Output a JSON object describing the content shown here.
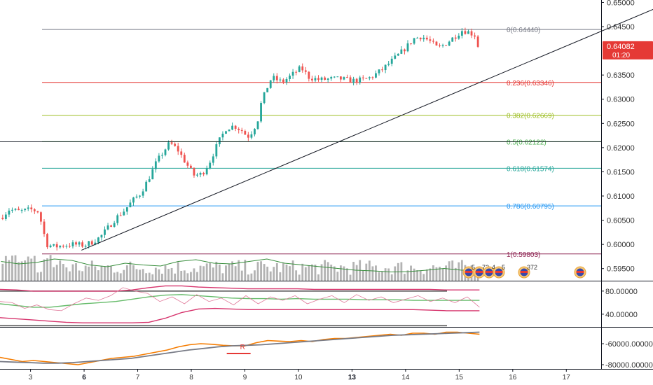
{
  "chart_data": {
    "type": "candlestick",
    "main": {
      "price_axis": {
        "ticks": [
          "0.65000",
          "0.64500",
          "0.63500",
          "0.63000",
          "0.62500",
          "0.62000",
          "0.61500",
          "0.61000",
          "0.60500",
          "0.60000",
          "0.59500"
        ],
        "tick_values": [
          0.65,
          0.645,
          0.635,
          0.63,
          0.625,
          0.62,
          0.615,
          0.61,
          0.605,
          0.6,
          0.595
        ],
        "ylim": [
          0.5925,
          0.6505
        ]
      },
      "current_price_label": "0.64082",
      "countdown_label": "01:20",
      "current_price": 0.64082,
      "crosshair_price": 0.6212,
      "fibonacci": [
        {
          "label": "0(0.64440)",
          "value": 0.6444,
          "color": "#787b86"
        },
        {
          "label": "0.236(0.63346)",
          "value": 0.63346,
          "color": "#e53935"
        },
        {
          "label": "0.382(0.62669)",
          "value": 0.62669,
          "color": "#9fbf26"
        },
        {
          "label": "0.5(0.62122)",
          "value": 0.62122,
          "color": "#4caf50"
        },
        {
          "label": "0.618(0.61574)",
          "value": 0.61574,
          "color": "#26a69a"
        },
        {
          "label": "0.786(0.60795)",
          "value": 0.60795,
          "color": "#2196f3"
        },
        {
          "label": "1(0.59803)",
          "value": 0.59803,
          "color": "#8e2452"
        }
      ],
      "trendline": {
        "from": {
          "t": 3.95,
          "price": 0.5988
        },
        "to": {
          "t": 15.4,
          "price": 0.6522
        }
      },
      "up_color": "#26a69a",
      "down_color": "#ef5350",
      "price_path": [
        [
          2.45,
          0.6055
        ],
        [
          2.6,
          0.6072
        ],
        [
          2.8,
          0.6068
        ],
        [
          3.0,
          0.6072
        ],
        [
          3.15,
          0.6068
        ],
        [
          3.3,
          0.6
        ],
        [
          3.45,
          0.5995
        ],
        [
          3.6,
          0.5998
        ],
        [
          3.8,
          0.6
        ],
        [
          4.0,
          0.5998
        ],
        [
          4.15,
          0.6005
        ],
        [
          4.3,
          0.6015
        ],
        [
          4.45,
          0.6035
        ],
        [
          4.6,
          0.6055
        ],
        [
          4.75,
          0.607
        ],
        [
          4.9,
          0.609
        ],
        [
          5.05,
          0.6105
        ],
        [
          5.2,
          0.6135
        ],
        [
          5.35,
          0.617
        ],
        [
          5.5,
          0.6195
        ],
        [
          5.6,
          0.621
        ],
        [
          5.75,
          0.6195
        ],
        [
          5.9,
          0.6168
        ],
        [
          6.05,
          0.6143
        ],
        [
          6.2,
          0.6145
        ],
        [
          6.35,
          0.6172
        ],
        [
          6.5,
          0.621
        ],
        [
          6.65,
          0.624
        ],
        [
          6.8,
          0.6245
        ],
        [
          6.95,
          0.6235
        ],
        [
          7.05,
          0.6222
        ],
        [
          7.15,
          0.6235
        ],
        [
          7.25,
          0.626
        ],
        [
          7.3,
          0.629
        ],
        [
          7.4,
          0.632
        ],
        [
          7.5,
          0.6345
        ],
        [
          7.7,
          0.6335
        ],
        [
          7.9,
          0.6352
        ],
        [
          8.05,
          0.6365
        ],
        [
          8.2,
          0.6345
        ],
        [
          8.4,
          0.634
        ],
        [
          8.6,
          0.6342
        ],
        [
          8.8,
          0.6342
        ],
        [
          9.0,
          0.6338
        ],
        [
          9.2,
          0.634
        ],
        [
          9.35,
          0.6345
        ],
        [
          9.55,
          0.636
        ],
        [
          9.75,
          0.638
        ],
        [
          9.9,
          0.6395
        ],
        [
          10.05,
          0.6412
        ],
        [
          10.15,
          0.6425
        ],
        [
          10.3,
          0.643
        ],
        [
          10.45,
          0.642
        ],
        [
          10.6,
          0.6405
        ],
        [
          10.75,
          0.6415
        ],
        [
          10.9,
          0.6428
        ],
        [
          11.05,
          0.6442
        ],
        [
          11.15,
          0.644
        ],
        [
          11.3,
          0.6432
        ],
        [
          11.38,
          0.6408
        ]
      ],
      "volume_ma": [
        0.55,
        0.48,
        0.52,
        0.62,
        0.58,
        0.45,
        0.4,
        0.5,
        0.45,
        0.42,
        0.55,
        0.6,
        0.5,
        0.48,
        0.55,
        0.62,
        0.5,
        0.45,
        0.4,
        0.35,
        0.3,
        0.28,
        0.25,
        0.26,
        0.3,
        0.35,
        0.3,
        0.32
      ],
      "event_badges": [
        "5",
        "72",
        "4",
        "5",
        "372"
      ]
    },
    "oscillator": {
      "ticks": [
        "80.00000",
        "40.00000"
      ],
      "tick_values": [
        80,
        40
      ],
      "ylim": [
        18,
        98
      ],
      "levels": [
        80,
        20
      ],
      "series": [
        {
          "color": "#d6336c",
          "values": [
            83,
            82,
            80,
            80,
            80,
            80,
            80,
            80,
            82,
            86,
            89,
            89,
            87,
            86,
            85,
            84,
            84,
            84,
            84,
            83,
            83,
            83,
            83,
            83,
            83,
            83,
            83,
            82,
            82,
            82
          ]
        },
        {
          "color": "#d6336c",
          "values": [
            34,
            32,
            30,
            28,
            26,
            25,
            25,
            25,
            25,
            26,
            33,
            43,
            49,
            50,
            49,
            48,
            48,
            48,
            48,
            48,
            48,
            48,
            48,
            48,
            48,
            48,
            47,
            46,
            46,
            46
          ]
        },
        {
          "color": "#66bb6a",
          "values": [
            58,
            55,
            52,
            52,
            55,
            58,
            60,
            62,
            66,
            70,
            73,
            74,
            72,
            70,
            68,
            67,
            67,
            66,
            67,
            66,
            66,
            66,
            65,
            65,
            65,
            64,
            64,
            64,
            64,
            64
          ]
        },
        {
          "color": "#e07a9a",
          "values": [
            62,
            60,
            50,
            56,
            48,
            46,
            58,
            68,
            64,
            72,
            86,
            80,
            76,
            62,
            70,
            58,
            74,
            62,
            68,
            56,
            72,
            58,
            70,
            64,
            72,
            58,
            66,
            72,
            60,
            74,
            64,
            70,
            60,
            66,
            72,
            62,
            68,
            60,
            70,
            52
          ]
        }
      ]
    },
    "accumulation": {
      "ticks": [
        "-60000.00000",
        "-80000.00000"
      ],
      "tick_values": [
        -60000,
        -80000
      ],
      "ylim": [
        -84000,
        -44000
      ],
      "series": [
        {
          "color": "#f57c00",
          "values": [
            -73000,
            -75000,
            -77000,
            -76000,
            -77000,
            -78000,
            -79000,
            -80000,
            -78000,
            -76000,
            -74000,
            -73000,
            -72000,
            -70000,
            -68000,
            -66000,
            -63000,
            -61000,
            -60000,
            -60500,
            -61500,
            -62000,
            -62000,
            -59000,
            -57000,
            -57500,
            -58000,
            -57000,
            -58000,
            -56000,
            -55000,
            -55000,
            -54000,
            -53000,
            -52000,
            -51000,
            -52000,
            -50000,
            -50000,
            -51000,
            -49000,
            -49000,
            -50000,
            -51000
          ]
        },
        {
          "color": "#787b86",
          "values": [
            -77000,
            -77500,
            -78000,
            -78500,
            -78500,
            -78000,
            -77000,
            -76000,
            -75000,
            -74000,
            -72000,
            -70000,
            -68000,
            -66000,
            -64500,
            -63000,
            -62000,
            -61500,
            -61000,
            -60000,
            -59000,
            -58000,
            -57000,
            -56000,
            -55000,
            -54000,
            -53000,
            -52000,
            -51500,
            -51000,
            -50500,
            -50000,
            -49500,
            -49000
          ]
        }
      ],
      "marker_label": "R",
      "marker_t": 6.95
    },
    "time_axis": {
      "ticks": [
        {
          "label": "3",
          "t": 3,
          "bold": false
        },
        {
          "label": "6",
          "t": 4,
          "bold": true
        },
        {
          "label": "7",
          "t": 5,
          "bold": false
        },
        {
          "label": "8",
          "t": 6,
          "bold": false
        },
        {
          "label": "9",
          "t": 7,
          "bold": false
        },
        {
          "label": "10",
          "t": 8,
          "bold": false
        },
        {
          "label": "13",
          "t": 9,
          "bold": true
        },
        {
          "label": "14",
          "t": 10,
          "bold": false
        },
        {
          "label": "15",
          "t": 11,
          "bold": false
        },
        {
          "label": "16",
          "t": 12,
          "bold": false
        },
        {
          "label": "17",
          "t": 13,
          "bold": false
        }
      ],
      "xlim": [
        2.43,
        13.65
      ]
    }
  }
}
